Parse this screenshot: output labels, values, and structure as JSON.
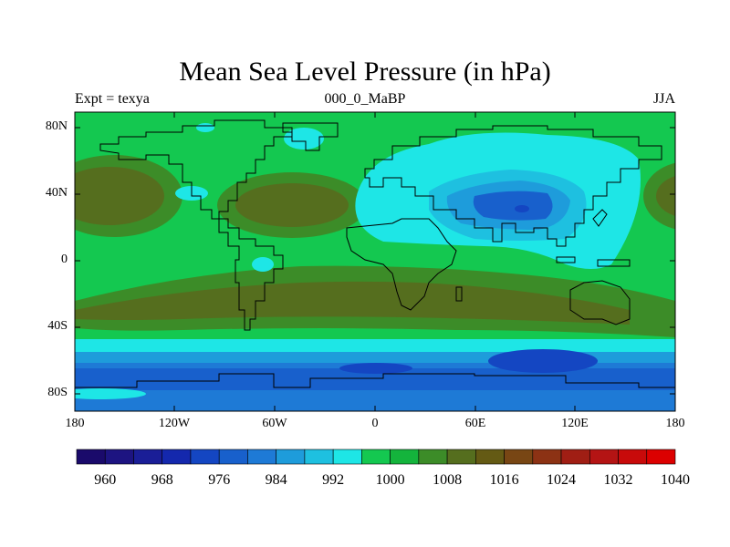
{
  "title": "Mean Sea Level Pressure (in hPa)",
  "subtitle_left": "Expt = texya",
  "subtitle_center": "000_0_MaBP",
  "subtitle_right": "JJA",
  "y_ticks": [
    "80N",
    "40N",
    "0",
    "40S",
    "80S"
  ],
  "x_ticks": [
    "180",
    "120W",
    "60W",
    "0",
    "60E",
    "120E",
    "180"
  ],
  "colorbar": {
    "colors": [
      "#1a0a6b",
      "#1d1481",
      "#1a1e97",
      "#1428ad",
      "#1446c2",
      "#1860cc",
      "#1e7ad6",
      "#1e9cdb",
      "#1ec0e0",
      "#1ee6e6",
      "#14c850",
      "#14b43c",
      "#3c8c28",
      "#556e1e",
      "#645a14",
      "#784614",
      "#8c3214",
      "#a01e14",
      "#b41414",
      "#c80a0a",
      "#dc0000"
    ],
    "labels": [
      "960",
      "968",
      "976",
      "984",
      "992",
      "1000",
      "1008",
      "1016",
      "1024",
      "1032",
      "1040"
    ]
  },
  "colors": {
    "background": "#14c850",
    "high": "#556e1e",
    "mid_high": "#3c8c28",
    "low1": "#1ee6e6",
    "low2": "#1ec0e0",
    "low3": "#1e9cdb",
    "low4": "#1e7ad6",
    "low5": "#1860cc",
    "low6": "#1446c2"
  }
}
